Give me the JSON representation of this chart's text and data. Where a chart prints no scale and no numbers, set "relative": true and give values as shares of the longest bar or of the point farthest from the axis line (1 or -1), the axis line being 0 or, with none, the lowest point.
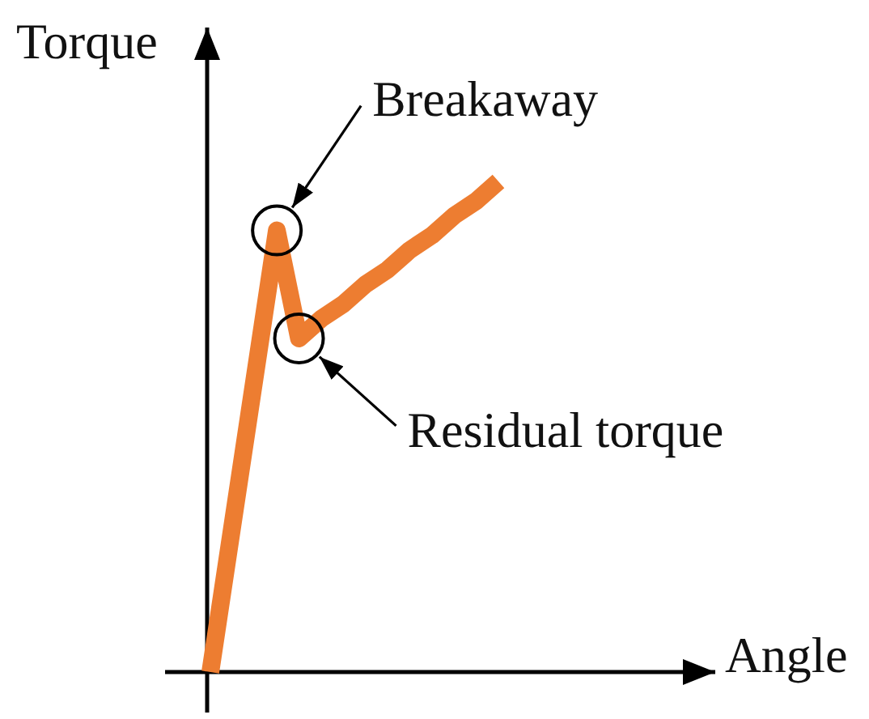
{
  "chart_data": {
    "type": "line",
    "xlabel": "Angle",
    "ylabel": "Torque",
    "categories": [
      null,
      null,
      null,
      null,
      null,
      null,
      null,
      null,
      null,
      null,
      null,
      null,
      null,
      null
    ],
    "values": [
      0,
      0.3,
      0.6,
      0.9,
      0.68,
      0.72,
      0.75,
      0.79,
      0.82,
      0.86,
      0.89,
      0.93,
      0.96,
      1.0
    ],
    "color": "#ed7d31",
    "relative": true,
    "annotations": [
      "Breakaway",
      "Residual torque"
    ]
  }
}
